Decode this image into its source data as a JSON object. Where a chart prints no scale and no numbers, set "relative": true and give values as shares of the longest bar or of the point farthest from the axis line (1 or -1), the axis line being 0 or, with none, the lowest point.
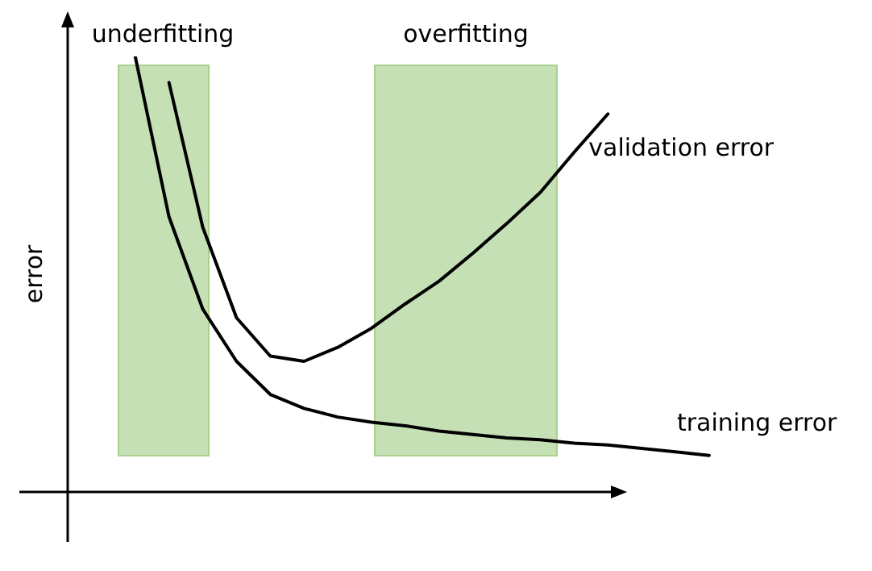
{
  "chart_data": {
    "type": "line",
    "relative": true,
    "ylabel": "error",
    "legend": false,
    "marker": "none",
    "line_style": "solid",
    "categories": [
      null,
      null,
      null,
      null,
      null,
      null,
      null,
      null,
      null,
      null,
      null,
      null,
      null,
      null,
      null,
      null,
      null,
      null,
      null,
      null
    ],
    "series": [
      {
        "name": "training error",
        "color": "#000000",
        "values": [
          null,
          null,
          1.0,
          0.632,
          0.42,
          0.3,
          0.224,
          0.192,
          0.172,
          0.16,
          0.152,
          0.14,
          0.132,
          0.124,
          0.12,
          0.112,
          0.108,
          0.1,
          0.092,
          0.084
        ]
      },
      {
        "name": "validation error",
        "color": "#000000",
        "values": [
          null,
          null,
          null,
          0.94,
          0.608,
          0.4,
          0.312,
          0.3,
          0.332,
          0.376,
          0.432,
          0.484,
          0.548,
          0.616,
          0.688,
          0.78,
          0.868,
          null,
          null,
          null
        ]
      }
    ],
    "annotations": [
      "underfitting",
      "overfitting"
    ]
  }
}
